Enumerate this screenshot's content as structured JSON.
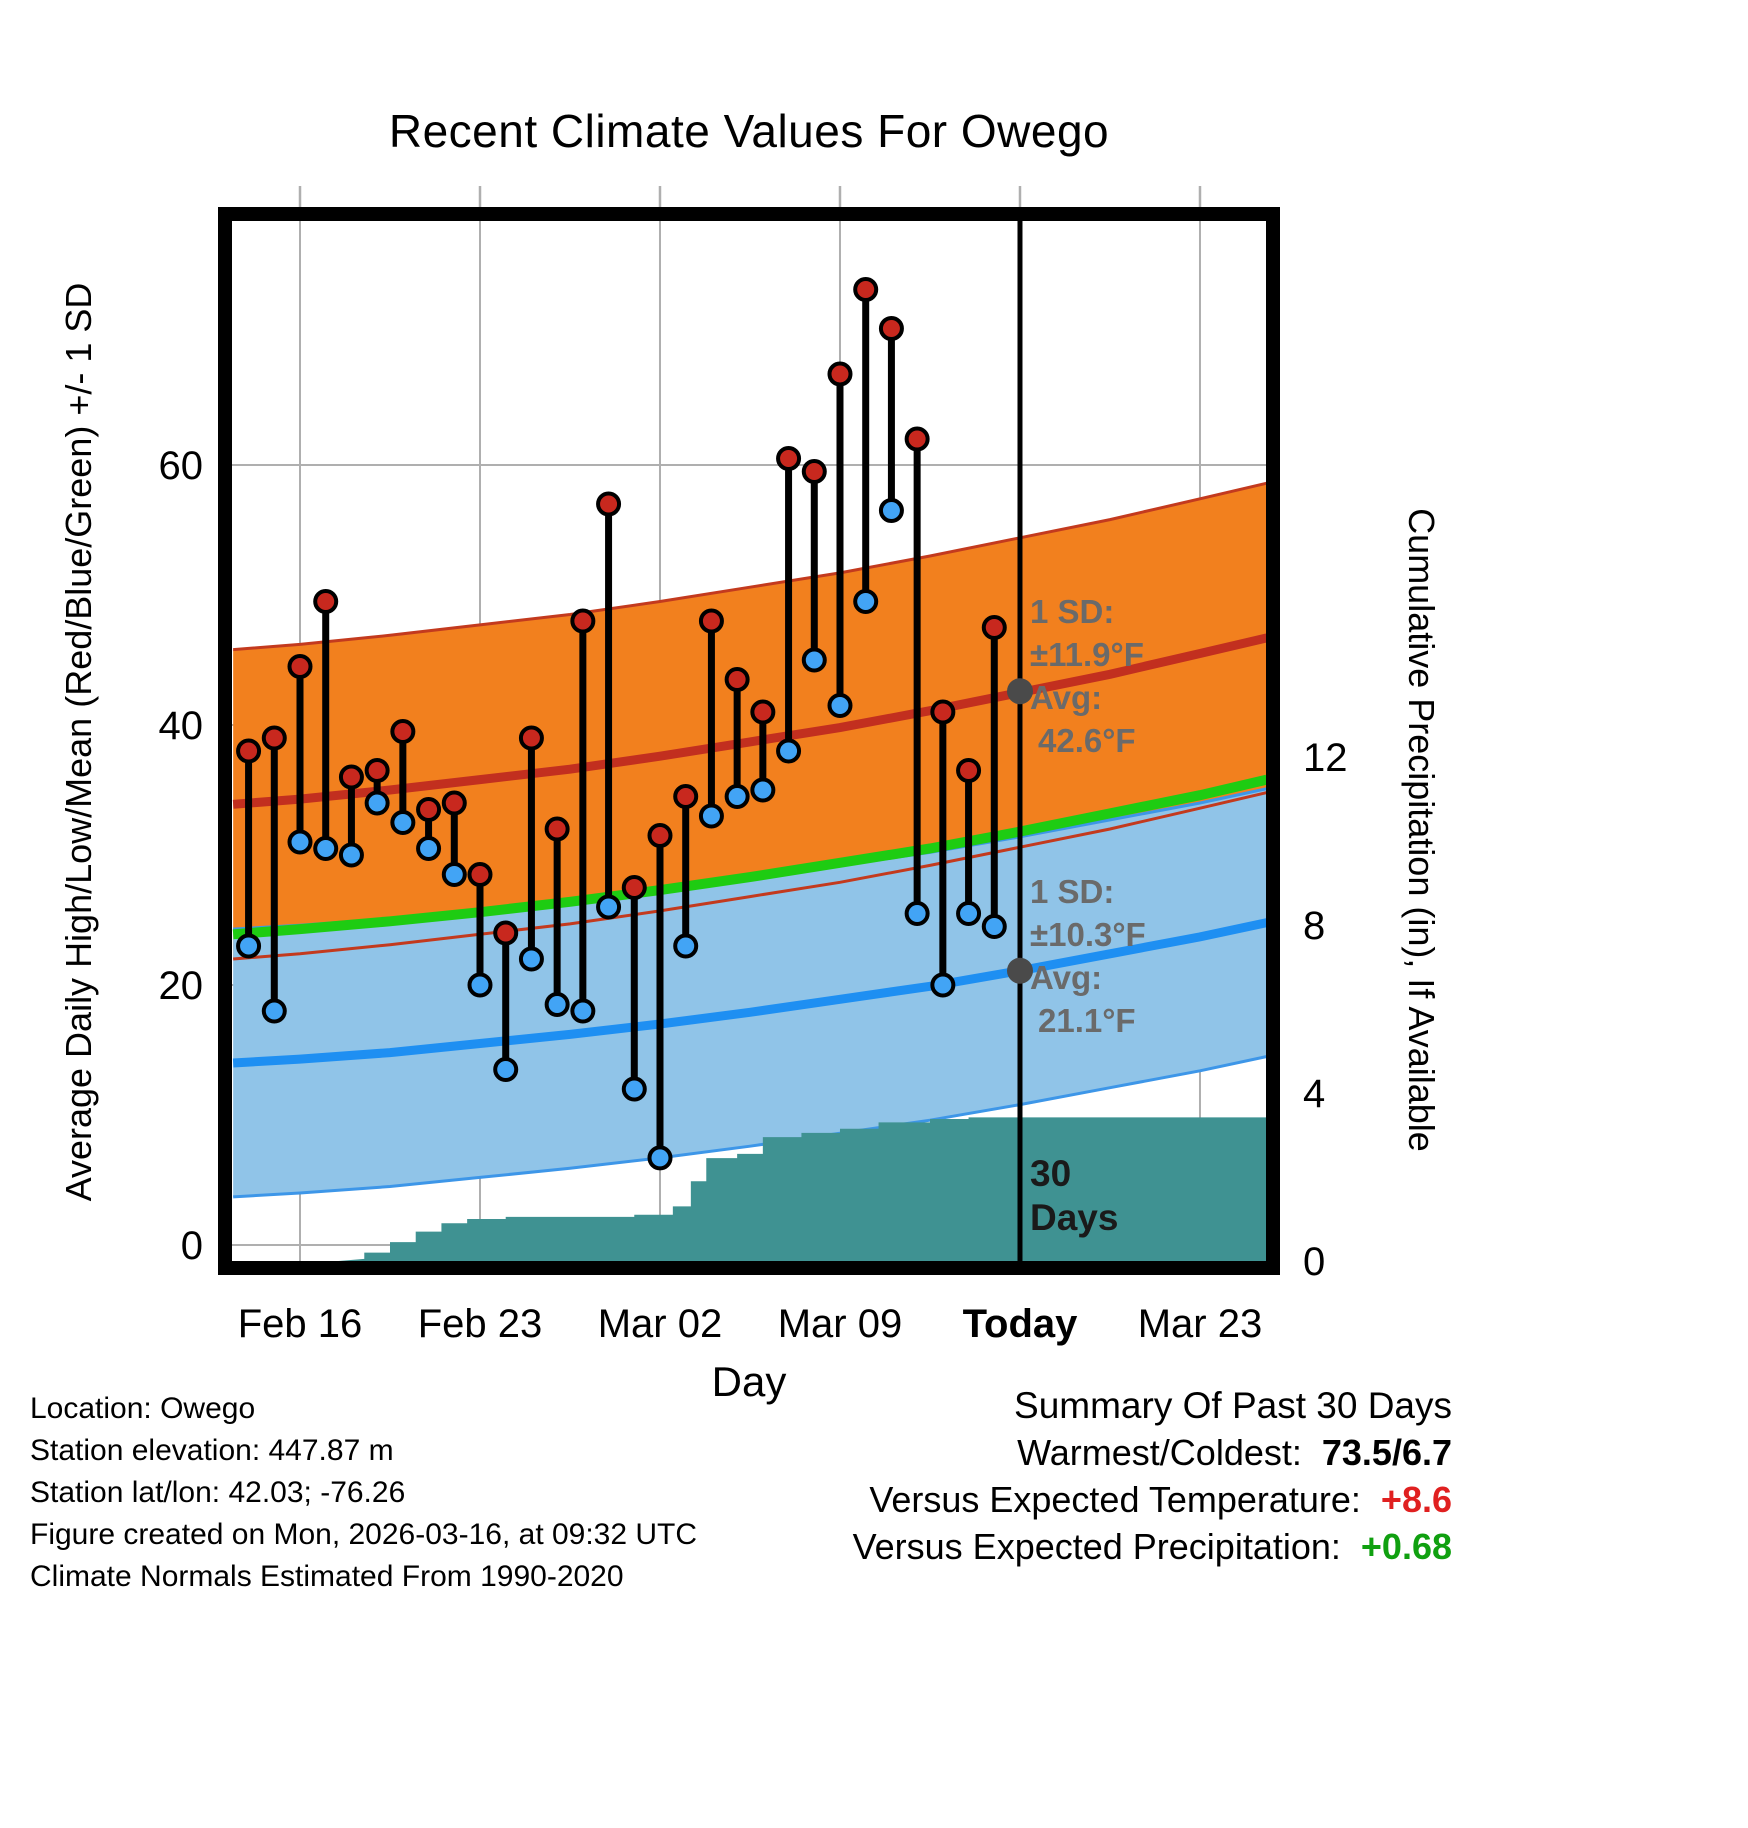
{
  "title": "Recent Climate Values For Owego",
  "colors": {
    "high_band": "#F2801E",
    "high_band_edge": "#C33A1E",
    "high_line": "#C22F1F",
    "low_band": "#90C4E8",
    "low_band_edge": "#3D96E8",
    "low_line": "#1E8FF2",
    "mean_line": "#1ECC12",
    "precip_fill": "#3F9292",
    "stem": "#000000",
    "high_marker": "#C8281E",
    "low_marker": "#42A4F5",
    "today_line": "#000000",
    "gray_marker": "#4A4A4A",
    "grid": "#AFAFAF",
    "annotation_text": "#6A6A6A"
  },
  "annotations": {
    "high": {
      "sd_label": "1 SD:",
      "sd_value": "±11.9°F",
      "avg_label": "Avg:",
      "avg_value": "42.6°F"
    },
    "low": {
      "sd_label": "1 SD:",
      "sd_value": "±10.3°F",
      "avg_label": "Avg:",
      "avg_value": "21.1°F"
    },
    "window": {
      "line1": "30",
      "line2": "Days"
    }
  },
  "footer": {
    "location": "Location: Owego",
    "elevation": "Station elevation: 447.87 m",
    "latlon": "Station lat/lon: 42.03; -76.26",
    "created": "Figure created on Mon, 2026-03-16, at 09:32 UTC",
    "normals": "Climate Normals Estimated From 1990-2020"
  },
  "summary": {
    "heading": "Summary Of Past 30 Days",
    "rows": [
      {
        "label": "Warmest/Coldest:",
        "value": "73.5/6.7",
        "color": "#000000"
      },
      {
        "label": "Versus Expected Temperature:",
        "value": "+8.6",
        "color": "#E02020"
      },
      {
        "label": "Versus Expected Precipitation:",
        "value": "+0.68",
        "color": "#10A010"
      }
    ]
  },
  "chart_data": {
    "type": "composite",
    "description": "Daily high/low temperature scatter with stems, climate-normal bands (avg high/low ±1 SD), mean line, and cumulative precipitation step area",
    "x_axis": {
      "label": "Day",
      "tick_days": [
        0,
        7,
        14,
        21,
        28,
        35
      ],
      "tick_labels": [
        "Feb 16",
        "Feb 23",
        "Mar 02",
        "Mar 09",
        "Today",
        "Mar 23"
      ],
      "domain_days": [
        -2.65,
        37.57
      ]
    },
    "left_axis": {
      "label": "Average Daily High/Low/Mean (Red/Blue/Green) +/- 1 SD",
      "ticks": [
        0,
        20,
        40,
        60
      ],
      "range": [
        -1.2,
        78.8
      ]
    },
    "right_axis": {
      "label": "Cumulative Precipitation (in), If Available",
      "ticks": [
        0,
        4,
        8,
        12
      ]
    },
    "daily": {
      "dates": [
        "Feb 14",
        "Feb 15",
        "Feb 16",
        "Feb 17",
        "Feb 18",
        "Feb 19",
        "Feb 20",
        "Feb 21",
        "Feb 22",
        "Feb 23",
        "Feb 24",
        "Feb 25",
        "Feb 26",
        "Feb 27",
        "Feb 28",
        "Mar 01",
        "Mar 02",
        "Mar 03",
        "Mar 04",
        "Mar 05",
        "Mar 06",
        "Mar 07",
        "Mar 08",
        "Mar 09",
        "Mar 10",
        "Mar 11",
        "Mar 12",
        "Mar 13",
        "Mar 14",
        "Mar 15"
      ],
      "day_offsets": [
        -2,
        -1,
        0,
        1,
        2,
        3,
        4,
        5,
        6,
        7,
        8,
        9,
        10,
        11,
        12,
        13,
        14,
        15,
        16,
        17,
        18,
        19,
        20,
        21,
        22,
        23,
        24,
        25,
        26,
        27
      ],
      "highs": [
        38,
        39,
        44.5,
        49.5,
        36,
        36.5,
        39.5,
        33.5,
        34,
        28.5,
        24,
        39,
        32,
        48,
        57,
        27.5,
        31.5,
        34.5,
        48,
        43.5,
        41,
        60.5,
        59.5,
        67,
        73.5,
        70.5,
        62,
        41,
        36.5,
        47.5
      ],
      "lows": [
        23,
        18,
        31,
        30.5,
        30,
        34,
        32.5,
        30.5,
        28.5,
        20,
        13.5,
        22,
        18.5,
        18,
        26,
        12,
        6.7,
        23,
        33,
        34.5,
        35,
        38,
        45,
        41.5,
        49.5,
        56.5,
        25.5,
        20,
        25.5,
        24.5
      ]
    },
    "normals": {
      "sample_days": [
        -2.6,
        0,
        3.5,
        7,
        10.5,
        14,
        17.5,
        21,
        24.5,
        28,
        31.5,
        35,
        37.6
      ],
      "avg_high": [
        33.9,
        34.3,
        35.0,
        35.8,
        36.6,
        37.6,
        38.7,
        39.8,
        41.1,
        42.5,
        43.9,
        45.5,
        46.7
      ],
      "avg_low": [
        14.0,
        14.3,
        14.8,
        15.5,
        16.2,
        17.0,
        17.9,
        18.9,
        19.9,
        21.1,
        22.4,
        23.7,
        24.8
      ],
      "mean": [
        23.9,
        24.3,
        24.9,
        25.6,
        26.4,
        27.3,
        28.3,
        29.4,
        30.5,
        31.8,
        33.2,
        34.6,
        35.8
      ],
      "sd_high": 11.9,
      "sd_low": 10.3
    },
    "precip_cumulative": {
      "days": [
        1.5,
        2.5,
        3.5,
        4.5,
        5.5,
        6.5,
        8,
        13,
        14.5,
        15.2,
        15.8,
        17,
        18,
        19.5,
        21,
        22.5,
        24.5,
        26
      ],
      "values": [
        0.05,
        0.2,
        0.45,
        0.7,
        0.9,
        1.0,
        1.05,
        1.1,
        1.3,
        1.9,
        2.45,
        2.55,
        2.95,
        3.05,
        3.15,
        3.3,
        3.38,
        3.42
      ]
    },
    "today_day": 28,
    "today_markers": [
      {
        "name": "avg-high-today",
        "value": 42.6
      },
      {
        "name": "avg-low-today",
        "value": 21.1
      }
    ],
    "window_days": 30
  }
}
